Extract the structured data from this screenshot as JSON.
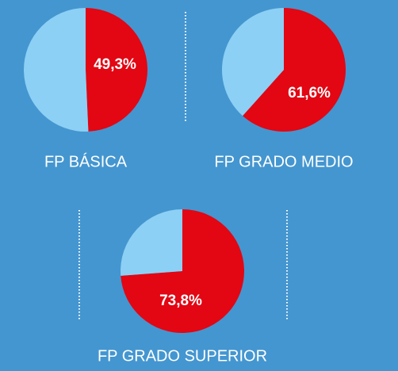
{
  "chart_data": [
    {
      "type": "pie",
      "title": "FP BÁSICA",
      "values": [
        49.3,
        50.7
      ],
      "value_labels": [
        "49,3%",
        null
      ],
      "colors": [
        "#e30613",
        "#8dd0f5"
      ]
    },
    {
      "type": "pie",
      "title": "FP GRADO MEDIO",
      "values": [
        61.6,
        38.4
      ],
      "value_labels": [
        "61,6%",
        null
      ],
      "colors": [
        "#e30613",
        "#8dd0f5"
      ]
    },
    {
      "type": "pie",
      "title": "FP GRADO SUPERIOR",
      "values": [
        73.8,
        26.2
      ],
      "value_labels": [
        "73,8%",
        null
      ],
      "colors": [
        "#e30613",
        "#8dd0f5"
      ]
    }
  ]
}
